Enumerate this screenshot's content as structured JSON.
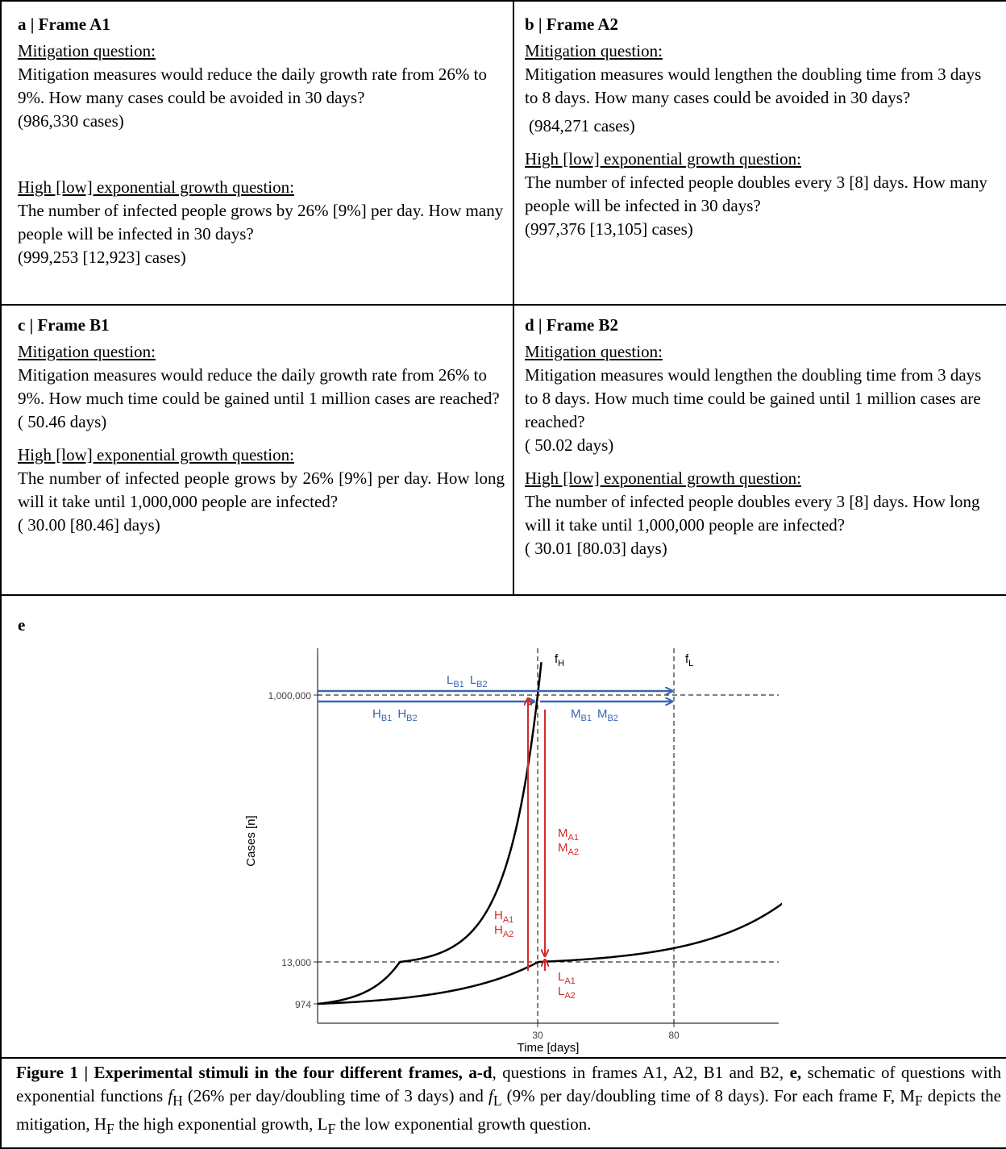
{
  "panels": [
    {
      "label": "a | Frame A1",
      "mit_label": "Mitigation question:",
      "mit_text": "Mitigation measures would reduce the daily growth rate from 26% to 9%. How many cases could be avoided in 30 days?",
      "mit_answer": "(986,330 cases)",
      "exp_label": "High [low] exponential growth question:",
      "exp_text": "The number of infected people grows by 26% [9%] per day. How many people will be infected in 30 days?",
      "exp_answer": "(999,253 [12,923] cases)"
    },
    {
      "label": "b | Frame A2",
      "mit_label": "Mitigation question:",
      "mit_text": "Mitigation measures would lengthen the doubling time from 3 days to 8 days. How many cases could be avoided in 30 days?",
      "mit_answer": "(984,271 cases)",
      "exp_label": "High [low] exponential growth question:",
      "exp_text": "The number of infected people doubles every 3 [8] days. How many people will be infected in 30 days?",
      "exp_answer": "(997,376 [13,105] cases)"
    },
    {
      "label": "c | Frame B1",
      "mit_label": "Mitigation question:",
      "mit_text": "Mitigation measures would reduce the daily growth rate from 26% to 9%. How much time could be gained until 1 million cases are reached?",
      "mit_answer": "( 50.46 days)",
      "exp_label": "High [low] exponential growth question:",
      "exp_text": "The number of infected people grows by 26% [9%] per day. How long will it take until 1,000,000 people are infected?",
      "exp_answer": "( 30.00 [80.46] days)"
    },
    {
      "label": "d | Frame B2",
      "mit_label": "Mitigation question:",
      "mit_text": "Mitigation measures would lengthen the doubling time from 3 days to 8 days. How much time could be gained until 1 million cases are reached?",
      "mit_answer": "( 50.02 days)",
      "exp_label": "High [low] exponential growth question:",
      "exp_text": "The number of infected people doubles every 3 [8] days. How long will it take until 1,000,000 people are infected?",
      "exp_answer": "( 30.01 [80.03] days)"
    }
  ],
  "panel_e": {
    "label": "e"
  },
  "chart_data": {
    "type": "line",
    "xlabel": "Time [days]",
    "ylabel": "Cases [n]",
    "x_ticks": [
      30,
      80
    ],
    "y_ticks": [
      974,
      13000,
      1000000
    ],
    "y_tick_labels": [
      "974",
      "13,000",
      "1,000,000"
    ],
    "series": [
      {
        "name": "fH",
        "growth_per_day": 0.26
      },
      {
        "name": "fL",
        "growth_per_day": 0.09
      }
    ],
    "series_labels": {
      "fH": {
        "main": "f",
        "sub": "H"
      },
      "fL": {
        "main": "f",
        "sub": "L"
      }
    },
    "annotations": {
      "LB": {
        "a": "L",
        "a_sub": "B1",
        "b": "L",
        "b_sub": "B2"
      },
      "HB": {
        "a": "H",
        "a_sub": "B1",
        "b": "H",
        "b_sub": "B2"
      },
      "MB": {
        "a": "M",
        "a_sub": "B1",
        "b": "M",
        "b_sub": "B2"
      },
      "MA": {
        "a": "M",
        "a_sub": "A1",
        "b": "M",
        "b_sub": "A2"
      },
      "HA": {
        "a": "H",
        "a_sub": "A1",
        "b": "H",
        "b_sub": "A2"
      },
      "LA": {
        "a": "L",
        "a_sub": "A1",
        "b": "L",
        "b_sub": "A2"
      }
    },
    "colors": {
      "blue": "#3a66b0",
      "red": "#d42a2a",
      "curve": "#000000"
    }
  },
  "caption": {
    "bold": "Figure 1 | Experimental stimuli in the four different frames, a-d",
    "t1": ", questions in frames A1, A2, B1 and B2, ",
    "e_bold": "e,",
    "t2": " schematic of questions with exponential functions ",
    "fH_main": "f",
    "fH_sub": "H",
    "t3": " (26% per day/doubling time of 3 days) and ",
    "fL_main": "f",
    "fL_sub": "L",
    "t4": " (9% per day/doubling time of 8 days). For each frame F, M",
    "sub_F1": "F",
    "t5": " depicts the mitigation, H",
    "sub_F2": "F",
    "t6": " the high exponential growth, L",
    "sub_F3": "F",
    "t7": " the low exponential growth question."
  }
}
